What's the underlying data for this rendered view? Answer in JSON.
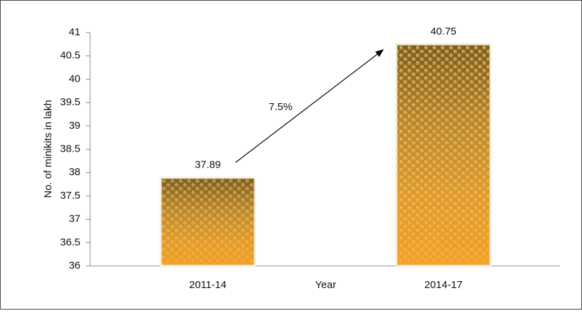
{
  "chart_data": {
    "type": "bar",
    "categories": [
      "2011-14",
      "2014-17"
    ],
    "values": [
      37.89,
      40.75
    ],
    "x_label": "Year",
    "y_label": "No. of minikits in lakh",
    "annotations": [
      {
        "text": "7.5%"
      }
    ],
    "ylim": [
      36,
      41
    ],
    "yticks": [
      36,
      36.5,
      37,
      37.5,
      38,
      38.5,
      39,
      39.5,
      40,
      40.5,
      41
    ],
    "color": "#e8a020",
    "grid": false
  }
}
